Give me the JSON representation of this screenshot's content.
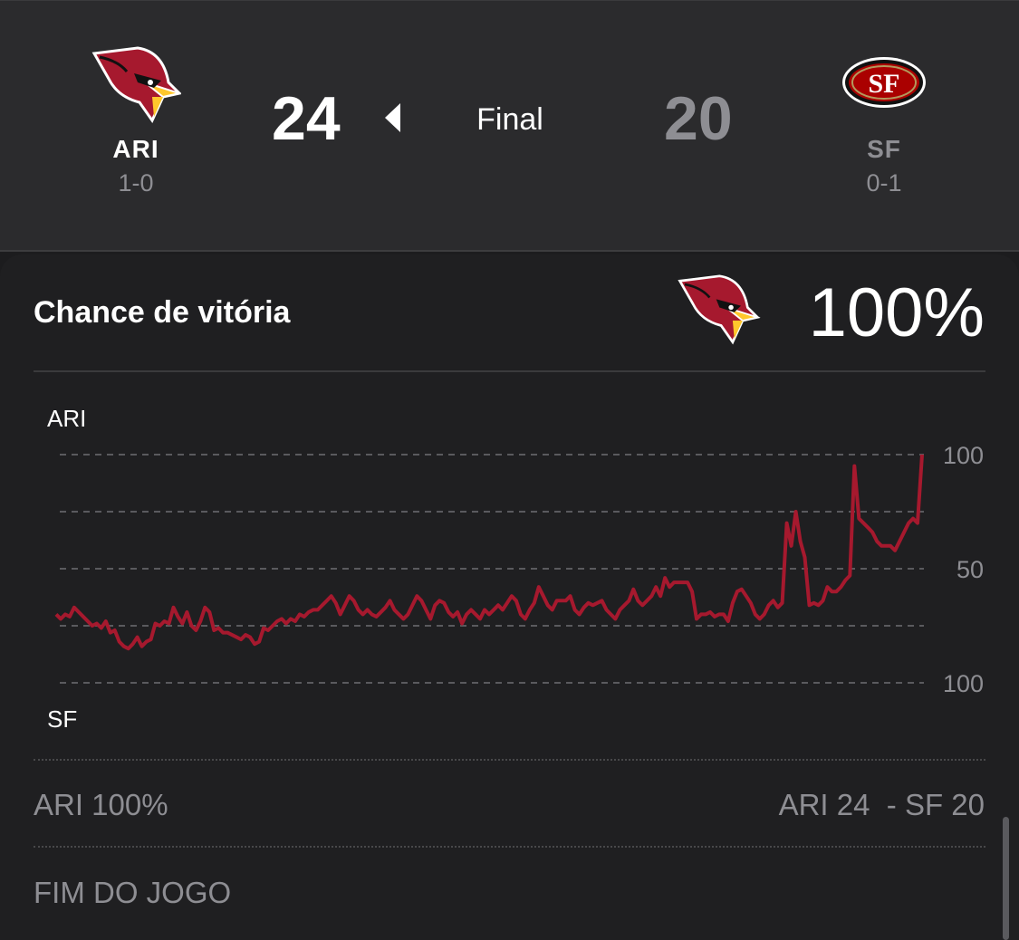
{
  "game": {
    "away": {
      "abbr": "ARI",
      "record": "1-0",
      "score": "24",
      "logo_icon": "cardinals-logo"
    },
    "home": {
      "abbr": "SF",
      "record": "0-1",
      "score": "20",
      "logo_icon": "49ers-logo"
    },
    "status": "Final"
  },
  "win_probability": {
    "title": "Chance de vitória",
    "leader_logo_icon": "cardinals-logo",
    "leader_pct": "100%",
    "top_team_label": "ARI",
    "bottom_team_label": "SF",
    "footer_left": "ARI 100%",
    "footer_right": "ARI 24  - SF 20",
    "phase": "FIM DO JOGO"
  },
  "colors": {
    "ari_red": "#a6192e",
    "chart_line": "#a6192e",
    "background": "#1c1c1e"
  },
  "chart_data": {
    "type": "line",
    "title": "",
    "xlabel": "",
    "ylabel": "",
    "y_tick_labels": [
      "100",
      "50",
      "100"
    ],
    "ylim": [
      0,
      100
    ],
    "grid": true,
    "series": [
      {
        "values": [
          30,
          28,
          30,
          29,
          33,
          31,
          29,
          27,
          25,
          26,
          24,
          27,
          22,
          23,
          18,
          16,
          15,
          17,
          20,
          16,
          18,
          19,
          26,
          25,
          27,
          26,
          33,
          29,
          26,
          31,
          25,
          23,
          27,
          33,
          31,
          23,
          24,
          22,
          22,
          21,
          20,
          19,
          21,
          20,
          17,
          18,
          24,
          23,
          25,
          27,
          28,
          26,
          28,
          27,
          30,
          29,
          31,
          32,
          32,
          34,
          36,
          38,
          35,
          30,
          34,
          38,
          36,
          32,
          30,
          32,
          30,
          29,
          31,
          33,
          36,
          32,
          30,
          28,
          30,
          34,
          38,
          36,
          32,
          28,
          34,
          36,
          35,
          31,
          29,
          31,
          26,
          30,
          32,
          30,
          28,
          32,
          30,
          32,
          34,
          32,
          35,
          38,
          36,
          30,
          28,
          32,
          35,
          42,
          38,
          34,
          32,
          36,
          36,
          36,
          38,
          32,
          30,
          33,
          35,
          34,
          35,
          36,
          32,
          30,
          28,
          32,
          34,
          36,
          41,
          36,
          34,
          36,
          38,
          42,
          38,
          46,
          42,
          44,
          44,
          44,
          44,
          40,
          28,
          30,
          30,
          31,
          29,
          30,
          30,
          27,
          35,
          40,
          41,
          38,
          35,
          30,
          28,
          30,
          34,
          36,
          33,
          35,
          70,
          60,
          75,
          62,
          55,
          34,
          35,
          34,
          36,
          42,
          40,
          40,
          42,
          45,
          47,
          95,
          72,
          70,
          68,
          66,
          62,
          60,
          60,
          60,
          58,
          62,
          66,
          70,
          72,
          70,
          100
        ]
      }
    ]
  }
}
